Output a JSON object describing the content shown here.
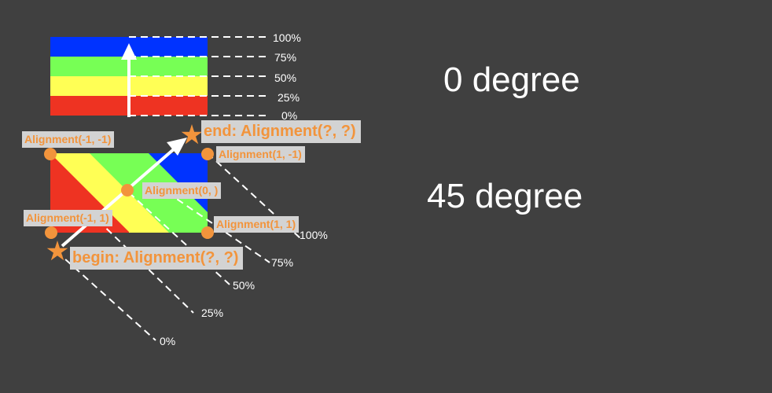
{
  "colors": {
    "background": "#404040",
    "blue": "#0033ff",
    "green": "#77ff55",
    "yellow": "#ffff55",
    "red": "#ee3322",
    "marker": "#f2943c",
    "tag_bg": "#d3d3d3",
    "guide": "#ffffff"
  },
  "angle_labels": {
    "zero": "0 degree",
    "forty_five": "45 degree"
  },
  "horizontal_stops": {
    "p100": "100%",
    "p75": "75%",
    "p50": "50%",
    "p25": "25%",
    "p0": "0%"
  },
  "diagonal_stops": {
    "p100": "100%",
    "p75": "75%",
    "p50": "50%",
    "p25": "25%",
    "p0": "0%"
  },
  "alignment_tags": {
    "top_left": "Alignment(-1, -1)",
    "top_right": "Alignment(1, -1)",
    "center": "Alignment(0, )",
    "bottom_left": "Alignment(-1, 1)",
    "bottom_right": "Alignment(1, 1)",
    "end": "end: Alignment(?, ?)",
    "begin": "begin: Alignment(?, ?)"
  }
}
